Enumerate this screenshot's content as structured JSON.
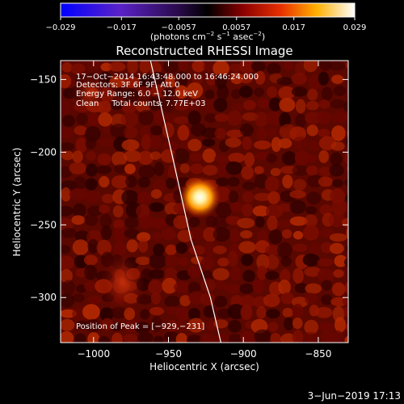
{
  "title": "Reconstructed RHESSI Image",
  "colorbar": {
    "tick_labels": [
      "−0.029",
      "−0.017",
      "−0.0057",
      "0.0057",
      "0.017",
      "0.029"
    ],
    "tick_values": [
      -0.029,
      -0.017,
      -0.0057,
      0.0057,
      0.017,
      0.029
    ],
    "range": [
      -0.029,
      0.029
    ],
    "units_main": "(photons cm",
    "units_exp1": "−2",
    "units_mid1": " s",
    "units_exp2": "−1",
    "units_mid2": " asec",
    "units_exp3": "−2",
    "units_end": ")",
    "colormap": "blue-purple-black-red-orange-yellow-white"
  },
  "info": {
    "line1": "17−Oct−2014 16:43:48.000 to 16:46:24.000",
    "line2": "Detectors: 3F 6F 9F, Att 0",
    "line3": "Energy Range: 6.0 − 12.0 keV",
    "line4": "Clean     Total counts: 7.77E+03",
    "peak": "Position of Peak = [−929,−231]"
  },
  "axes": {
    "xlabel": "Heliocentric X (arcsec)",
    "ylabel": "Heliocentric Y (arcsec)",
    "x_range": [
      -1022,
      -830
    ],
    "y_range": [
      -331,
      -137
    ],
    "xticks": [
      -1000,
      -950,
      -900,
      -850
    ],
    "xtick_labels": [
      "−1000",
      "−950",
      "−900",
      "−850"
    ],
    "yticks": [
      -150,
      -200,
      -250,
      -300
    ],
    "ytick_labels": [
      "−150",
      "−200",
      "−250",
      "−300"
    ]
  },
  "peak_position": [
    -929,
    -231
  ],
  "limb_curve": [
    [
      -962,
      -137
    ],
    [
      -948,
      -200
    ],
    [
      -935,
      -260
    ],
    [
      -922,
      -300
    ],
    [
      -915,
      -331
    ]
  ],
  "footer": {
    "timestamp": "3−Jun−2019 17:13"
  }
}
